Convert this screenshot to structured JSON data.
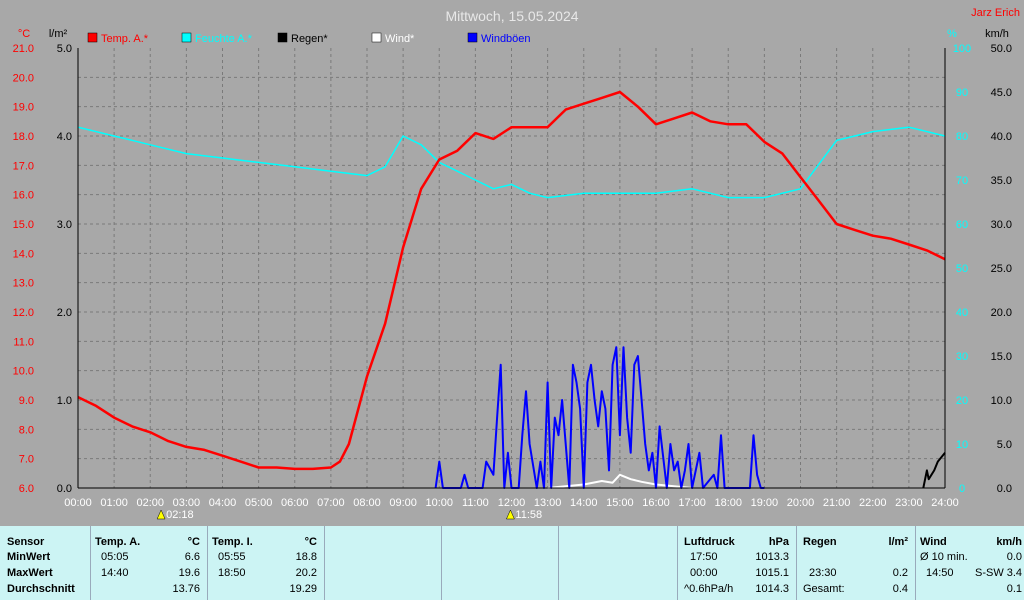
{
  "header": {
    "title": "Mittwoch, 15.05.2024",
    "author": "Jarz Erich"
  },
  "axes": {
    "left_unit_temp": "°C",
    "left_unit_rain": "l/m²",
    "right_unit_pct": "%",
    "right_unit_wind": "km/h"
  },
  "legend": [
    {
      "label": "Temp. A.*",
      "color": "#ff0000"
    },
    {
      "label": "Feuchte A.*",
      "color": "#00ffff"
    },
    {
      "label": "Regen*",
      "color": "#000000"
    },
    {
      "label": "Wind*",
      "color": "#ffffff"
    },
    {
      "label": "Windböen",
      "color": "#0000ff"
    }
  ],
  "markers": [
    {
      "time": "02:18",
      "hour": 2.3
    },
    {
      "time": "11:58",
      "hour": 11.97
    }
  ],
  "chart_data": {
    "type": "line",
    "title": "Mittwoch, 15.05.2024",
    "x_ticks": [
      "00:00",
      "01:00",
      "02:00",
      "03:00",
      "04:00",
      "05:00",
      "06:00",
      "07:00",
      "08:00",
      "09:00",
      "10:00",
      "11:00",
      "12:00",
      "13:00",
      "14:00",
      "15:00",
      "16:00",
      "17:00",
      "18:00",
      "19:00",
      "20:00",
      "21:00",
      "22:00",
      "23:00",
      "24:00"
    ],
    "xlim": [
      0,
      24
    ],
    "temp_ticks": [
      "21.0",
      "20.0",
      "19.0",
      "18.0",
      "17.0",
      "16.0",
      "15.0",
      "14.0",
      "13.0",
      "12.0",
      "11.0",
      "10.0",
      "9.0",
      "8.0",
      "7.0",
      "6.0"
    ],
    "temp_lim": [
      6,
      21
    ],
    "rain_ticks": [
      "5.0",
      "4.0",
      "3.0",
      "2.0",
      "1.0",
      "0.0"
    ],
    "rain_lim": [
      0,
      5
    ],
    "humidity_ticks": [
      "100",
      "90",
      "80",
      "70",
      "60",
      "50",
      "40",
      "30",
      "20",
      "10",
      "0"
    ],
    "humidity_lim": [
      0,
      100
    ],
    "wind_ticks": [
      "50.0",
      "45.0",
      "40.0",
      "35.0",
      "30.0",
      "25.0",
      "20.0",
      "15.0",
      "10.0",
      "5.0",
      "0.0"
    ],
    "wind_lim": [
      0,
      50
    ],
    "grid": true,
    "series": [
      {
        "name": "Temp. A.*",
        "axis": "temp",
        "color": "#ff0000",
        "x": [
          0,
          0.5,
          1,
          1.5,
          2,
          2.5,
          3,
          3.5,
          4,
          4.5,
          5,
          5.5,
          6,
          6.5,
          7,
          7.25,
          7.5,
          8,
          8.5,
          9,
          9.5,
          10,
          10.5,
          11,
          11.5,
          12,
          12.5,
          13,
          13.5,
          14,
          14.5,
          15,
          15.5,
          16,
          16.5,
          17,
          17.5,
          18,
          18.5,
          19,
          19.5,
          20,
          20.5,
          21,
          21.5,
          22,
          22.5,
          23,
          23.5,
          24
        ],
        "y": [
          9.1,
          8.8,
          8.4,
          8.1,
          7.9,
          7.6,
          7.4,
          7.3,
          7.1,
          6.9,
          6.7,
          6.7,
          6.65,
          6.65,
          6.7,
          6.9,
          7.5,
          9.8,
          11.6,
          14.2,
          16.2,
          17.2,
          17.5,
          18.1,
          17.9,
          18.3,
          18.3,
          18.3,
          18.9,
          19.1,
          19.3,
          19.5,
          19.0,
          18.4,
          18.6,
          18.8,
          18.5,
          18.4,
          18.4,
          17.8,
          17.4,
          16.6,
          15.8,
          15.0,
          14.8,
          14.6,
          14.5,
          14.3,
          14.1,
          13.8
        ]
      },
      {
        "name": "Feuchte A.*",
        "axis": "humidity",
        "color": "#00ffff",
        "x": [
          0,
          1,
          2,
          3,
          4,
          5,
          6,
          7,
          8,
          8.5,
          9,
          9.5,
          10,
          10.5,
          11,
          11.5,
          12,
          12.5,
          13,
          14,
          15,
          16,
          17,
          17.5,
          18,
          19,
          20,
          21,
          22,
          23,
          24
        ],
        "y": [
          82,
          80,
          78,
          76,
          75,
          74,
          73,
          72,
          71,
          73,
          80,
          78,
          74,
          72,
          70,
          68,
          69,
          67,
          66,
          67,
          67,
          67,
          68,
          67,
          66,
          66,
          68,
          79,
          81,
          82,
          80
        ]
      },
      {
        "name": "Wind*",
        "axis": "wind",
        "color": "#ffffff",
        "x": [
          13,
          13.5,
          14,
          14.5,
          14.8,
          15,
          15.3,
          15.6,
          16,
          16.5,
          17
        ],
        "y": [
          0,
          0.2,
          0.4,
          0.8,
          0.6,
          1.5,
          1.0,
          0.7,
          0.4,
          0.2,
          0
        ]
      },
      {
        "name": "Windböen",
        "axis": "wind",
        "color": "#0000ff",
        "x": [
          9.9,
          10,
          10.1,
          10.2,
          10.6,
          10.7,
          10.8,
          11.2,
          11.3,
          11.5,
          11.6,
          11.7,
          11.8,
          11.9,
          12.0,
          12.2,
          12.3,
          12.4,
          12.5,
          12.7,
          12.8,
          12.9,
          13.0,
          13.1,
          13.2,
          13.3,
          13.4,
          13.6,
          13.7,
          13.8,
          13.9,
          14.0,
          14.1,
          14.2,
          14.3,
          14.4,
          14.5,
          14.6,
          14.7,
          14.8,
          14.9,
          15.0,
          15.1,
          15.2,
          15.3,
          15.4,
          15.5,
          15.6,
          15.7,
          15.8,
          15.9,
          16.0,
          16.1,
          16.3,
          16.4,
          16.5,
          16.6,
          16.7,
          16.8,
          16.9,
          17.0,
          17.2,
          17.3,
          17.6,
          17.7,
          17.8,
          17.9,
          18.6,
          18.7,
          18.8,
          18.9,
          19.0
        ],
        "y": [
          0,
          3,
          0,
          0,
          0,
          1.5,
          0,
          0,
          3,
          1.5,
          8,
          14,
          0,
          4,
          0,
          0,
          6,
          11,
          5,
          0,
          3,
          0,
          12,
          0,
          8,
          6,
          10,
          0,
          14,
          12,
          9,
          0,
          12,
          14,
          10,
          7,
          11,
          9,
          2,
          14,
          16,
          6,
          16,
          8,
          4,
          14,
          15,
          10,
          5,
          2,
          4,
          0,
          7,
          0,
          5,
          2,
          3,
          0,
          2,
          5,
          0,
          4,
          0,
          1.5,
          0,
          6,
          0,
          0,
          6,
          1.5,
          0,
          0
        ]
      },
      {
        "name": "Regen*",
        "axis": "rain",
        "color": "#000000",
        "x": [
          23.4,
          23.5,
          23.55,
          23.7,
          23.8,
          24
        ],
        "y": [
          0,
          0.2,
          0.1,
          0.2,
          0.3,
          0.4
        ]
      }
    ]
  },
  "stats": {
    "sensor": {
      "header": "Sensor",
      "rows": [
        "MinWert",
        "MaxWert",
        "Durchschnitt"
      ]
    },
    "temp_a": {
      "header": "Temp. A.",
      "unit": "°C",
      "min_time": "05:05",
      "min_val": "6.6",
      "max_time": "14:40",
      "max_val": "19.6",
      "avg": "13.76"
    },
    "temp_i": {
      "header": "Temp. I.",
      "unit": "°C",
      "min_time": "05:55",
      "min_val": "18.8",
      "max_time": "18:50",
      "max_val": "20.2",
      "avg": "19.29"
    },
    "pressure": {
      "header": "Luftdruck",
      "unit": "hPa",
      "row1_time": "17:50",
      "row1_val": "1013.3",
      "row2_time": "00:00",
      "row2_val": "1015.1",
      "row3_label": "^0.6hPa/h",
      "row3_val": "1014.3"
    },
    "rain": {
      "header": "Regen",
      "unit": "l/m²",
      "row2_time": "23:30",
      "row2_val": "0.2",
      "row3_label": "Gesamt:",
      "row3_val": "0.4"
    },
    "wind": {
      "header": "Wind",
      "unit": "km/h",
      "row1_label": "Ø 10 min.",
      "row1_val": "0.0",
      "row2_time": "14:50",
      "row2_dir": "S-SW",
      "row2_val": "3.4",
      "row3_val": "0.1"
    }
  }
}
